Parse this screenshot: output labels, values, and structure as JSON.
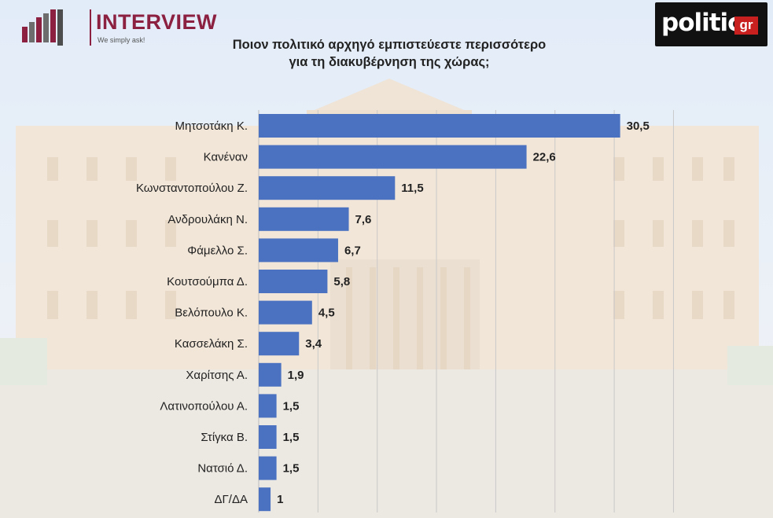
{
  "header": {
    "interview_brand": "INTERVIEW",
    "interview_tagline": "We simply ask!",
    "politic_brand": "politic",
    "politic_suffix": "gr"
  },
  "colors": {
    "bar": "#4a72c0",
    "interview_accent": "#8b2040",
    "politic_red": "#c8201f"
  },
  "chart_data": {
    "type": "bar",
    "orientation": "horizontal",
    "title_lines": [
      "Ποιον πολιτικό αρχηγό εμπιστεύεστε περισσότερο",
      "για τη διακυβέρνηση της χώρας;"
    ],
    "categories": [
      "Μητσοτάκη Κ.",
      "Κανέναν",
      "Κωνσταντοπούλου Ζ.",
      "Ανδρουλάκη Ν.",
      "Φάμελλο Σ.",
      "Κουτσούμπα Δ.",
      "Βελόπουλο Κ.",
      "Κασσελάκη Σ.",
      "Χαρίτσης Α.",
      "Λατινοπούλου Α.",
      "Στίγκα Β.",
      "Νατσιό Δ.",
      "ΔΓ/ΔΑ"
    ],
    "values": [
      30.5,
      22.6,
      11.5,
      7.6,
      6.7,
      5.8,
      4.5,
      3.4,
      1.9,
      1.5,
      1.5,
      1.5,
      1
    ],
    "value_labels": [
      "30,5",
      "22,6",
      "11,5",
      "7,6",
      "6,7",
      "5,8",
      "4,5",
      "3,4",
      "1,9",
      "1,5",
      "1,5",
      "1,5",
      "1"
    ],
    "xlim": [
      0,
      35
    ],
    "grid": true,
    "legend": "none"
  }
}
